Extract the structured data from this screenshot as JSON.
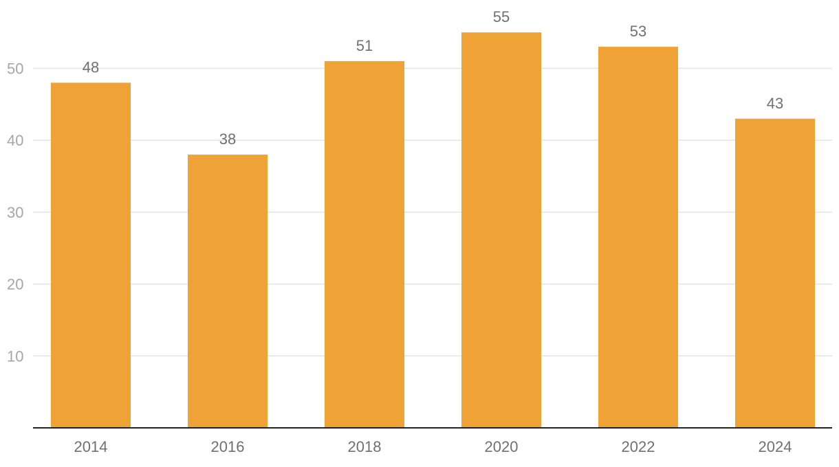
{
  "chart_data": {
    "type": "bar",
    "categories": [
      "2014",
      "2016",
      "2018",
      "2020",
      "2022",
      "2024"
    ],
    "values": [
      48,
      38,
      51,
      55,
      53,
      43
    ],
    "title": "",
    "xlabel": "",
    "ylabel": "",
    "ylim": [
      0,
      57
    ],
    "yticks": [
      10,
      20,
      30,
      40,
      50
    ],
    "grid": true,
    "legend": "none",
    "bar_color": "#EFA336"
  }
}
